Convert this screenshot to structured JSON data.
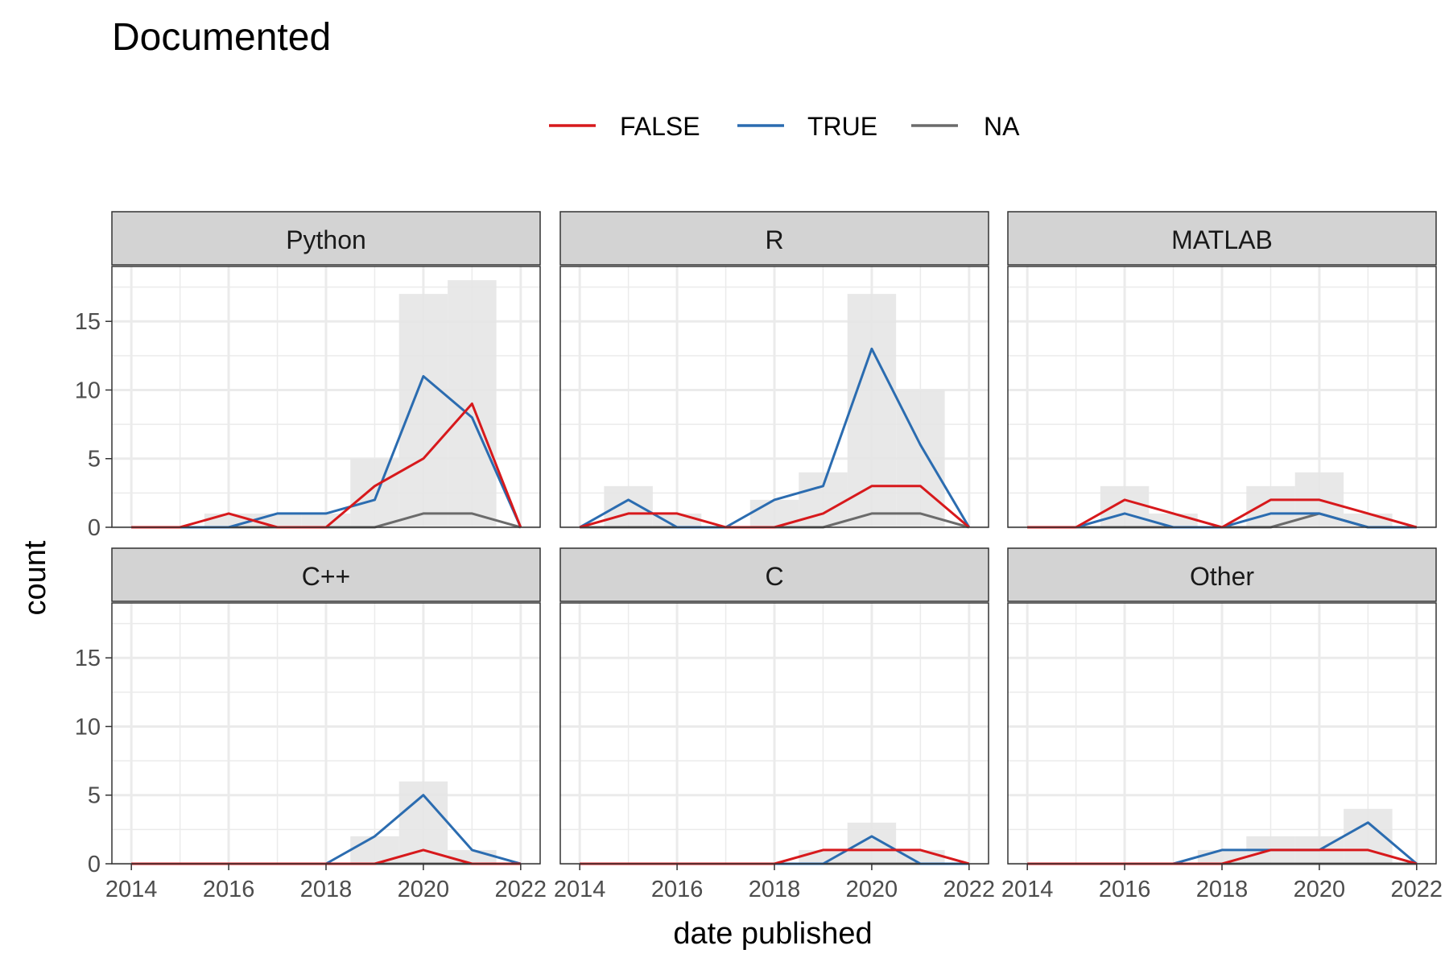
{
  "chart_data": {
    "type": "line",
    "title": "Documented",
    "xlabel": "date published",
    "ylabel": "count",
    "xlim": [
      2013.6,
      2022.4
    ],
    "ylim": [
      0,
      19
    ],
    "x_ticks": [
      2014,
      2016,
      2018,
      2020,
      2022
    ],
    "y_ticks": [
      0,
      5,
      10,
      15
    ],
    "grid": true,
    "legend_position": "top",
    "legend": [
      {
        "label": "FALSE",
        "color": "#d7191c"
      },
      {
        "label": "TRUE",
        "color": "#2b6cb0"
      },
      {
        "label": "NA",
        "color": "#6b6b6b"
      }
    ],
    "background_bar_color": "#e6e6e6",
    "panels": [
      {
        "name": "Python",
        "bars": [
          {
            "x": 2014,
            "y": 0
          },
          {
            "x": 2015,
            "y": 0
          },
          {
            "x": 2016,
            "y": 1
          },
          {
            "x": 2017,
            "y": 1
          },
          {
            "x": 2018,
            "y": 1
          },
          {
            "x": 2019,
            "y": 5
          },
          {
            "x": 2020,
            "y": 17
          },
          {
            "x": 2021,
            "y": 18
          },
          {
            "x": 2022,
            "y": 0
          }
        ],
        "series": [
          {
            "name": "FALSE",
            "x": [
              2014,
              2015,
              2016,
              2017,
              2018,
              2019,
              2020,
              2021,
              2022
            ],
            "values": [
              0,
              0,
              1,
              0,
              0,
              3,
              5,
              9,
              0
            ]
          },
          {
            "name": "TRUE",
            "x": [
              2014,
              2015,
              2016,
              2017,
              2018,
              2019,
              2020,
              2021,
              2022
            ],
            "values": [
              0,
              0,
              0,
              1,
              1,
              2,
              11,
              8,
              0
            ]
          },
          {
            "name": "NA",
            "x": [
              2014,
              2015,
              2016,
              2017,
              2018,
              2019,
              2020,
              2021,
              2022
            ],
            "values": [
              0,
              0,
              0,
              0,
              0,
              0,
              1,
              1,
              0
            ]
          }
        ]
      },
      {
        "name": "R",
        "bars": [
          {
            "x": 2014,
            "y": 0
          },
          {
            "x": 2015,
            "y": 3
          },
          {
            "x": 2016,
            "y": 1
          },
          {
            "x": 2017,
            "y": 0
          },
          {
            "x": 2018,
            "y": 2
          },
          {
            "x": 2019,
            "y": 4
          },
          {
            "x": 2020,
            "y": 17
          },
          {
            "x": 2021,
            "y": 10
          },
          {
            "x": 2022,
            "y": 0
          }
        ],
        "series": [
          {
            "name": "FALSE",
            "x": [
              2014,
              2015,
              2016,
              2017,
              2018,
              2019,
              2020,
              2021,
              2022
            ],
            "values": [
              0,
              1,
              1,
              0,
              0,
              1,
              3,
              3,
              0
            ]
          },
          {
            "name": "TRUE",
            "x": [
              2014,
              2015,
              2016,
              2017,
              2018,
              2019,
              2020,
              2021,
              2022
            ],
            "values": [
              0,
              2,
              0,
              0,
              2,
              3,
              13,
              6,
              0
            ]
          },
          {
            "name": "NA",
            "x": [
              2014,
              2015,
              2016,
              2017,
              2018,
              2019,
              2020,
              2021,
              2022
            ],
            "values": [
              0,
              0,
              0,
              0,
              0,
              0,
              1,
              1,
              0
            ]
          }
        ]
      },
      {
        "name": "MATLAB",
        "bars": [
          {
            "x": 2014,
            "y": 0
          },
          {
            "x": 2015,
            "y": 0
          },
          {
            "x": 2016,
            "y": 3
          },
          {
            "x": 2017,
            "y": 1
          },
          {
            "x": 2018,
            "y": 0
          },
          {
            "x": 2019,
            "y": 3
          },
          {
            "x": 2020,
            "y": 4
          },
          {
            "x": 2021,
            "y": 1
          },
          {
            "x": 2022,
            "y": 0
          }
        ],
        "series": [
          {
            "name": "FALSE",
            "x": [
              2014,
              2015,
              2016,
              2017,
              2018,
              2019,
              2020,
              2021,
              2022
            ],
            "values": [
              0,
              0,
              2,
              1,
              0,
              2,
              2,
              1,
              0
            ]
          },
          {
            "name": "TRUE",
            "x": [
              2014,
              2015,
              2016,
              2017,
              2018,
              2019,
              2020,
              2021,
              2022
            ],
            "values": [
              0,
              0,
              1,
              0,
              0,
              1,
              1,
              0,
              0
            ]
          },
          {
            "name": "NA",
            "x": [
              2014,
              2015,
              2016,
              2017,
              2018,
              2019,
              2020,
              2021,
              2022
            ],
            "values": [
              0,
              0,
              0,
              0,
              0,
              0,
              1,
              0,
              0
            ]
          }
        ]
      },
      {
        "name": "C++",
        "bars": [
          {
            "x": 2014,
            "y": 0
          },
          {
            "x": 2015,
            "y": 0
          },
          {
            "x": 2016,
            "y": 0
          },
          {
            "x": 2017,
            "y": 0
          },
          {
            "x": 2018,
            "y": 0
          },
          {
            "x": 2019,
            "y": 2
          },
          {
            "x": 2020,
            "y": 6
          },
          {
            "x": 2021,
            "y": 1
          },
          {
            "x": 2022,
            "y": 0
          }
        ],
        "series": [
          {
            "name": "FALSE",
            "x": [
              2014,
              2015,
              2016,
              2017,
              2018,
              2019,
              2020,
              2021,
              2022
            ],
            "values": [
              0,
              0,
              0,
              0,
              0,
              0,
              1,
              0,
              0
            ]
          },
          {
            "name": "TRUE",
            "x": [
              2014,
              2015,
              2016,
              2017,
              2018,
              2019,
              2020,
              2021,
              2022
            ],
            "values": [
              0,
              0,
              0,
              0,
              0,
              2,
              5,
              1,
              0
            ]
          },
          {
            "name": "NA",
            "x": [
              2014,
              2015,
              2016,
              2017,
              2018,
              2019,
              2020,
              2021,
              2022
            ],
            "values": [
              0,
              0,
              0,
              0,
              0,
              0,
              0,
              0,
              0
            ]
          }
        ]
      },
      {
        "name": "C",
        "bars": [
          {
            "x": 2014,
            "y": 0
          },
          {
            "x": 2015,
            "y": 0
          },
          {
            "x": 2016,
            "y": 0
          },
          {
            "x": 2017,
            "y": 0
          },
          {
            "x": 2018,
            "y": 0
          },
          {
            "x": 2019,
            "y": 1
          },
          {
            "x": 2020,
            "y": 3
          },
          {
            "x": 2021,
            "y": 1
          },
          {
            "x": 2022,
            "y": 0
          }
        ],
        "series": [
          {
            "name": "FALSE",
            "x": [
              2014,
              2015,
              2016,
              2017,
              2018,
              2019,
              2020,
              2021,
              2022
            ],
            "values": [
              0,
              0,
              0,
              0,
              0,
              1,
              1,
              1,
              0
            ]
          },
          {
            "name": "TRUE",
            "x": [
              2014,
              2015,
              2016,
              2017,
              2018,
              2019,
              2020,
              2021,
              2022
            ],
            "values": [
              0,
              0,
              0,
              0,
              0,
              0,
              2,
              0,
              0
            ]
          },
          {
            "name": "NA",
            "x": [
              2014,
              2015,
              2016,
              2017,
              2018,
              2019,
              2020,
              2021,
              2022
            ],
            "values": [
              0,
              0,
              0,
              0,
              0,
              0,
              0,
              0,
              0
            ]
          }
        ]
      },
      {
        "name": "Other",
        "bars": [
          {
            "x": 2014,
            "y": 0
          },
          {
            "x": 2015,
            "y": 0
          },
          {
            "x": 2016,
            "y": 0
          },
          {
            "x": 2017,
            "y": 0
          },
          {
            "x": 2018,
            "y": 1
          },
          {
            "x": 2019,
            "y": 2
          },
          {
            "x": 2020,
            "y": 2
          },
          {
            "x": 2021,
            "y": 4
          },
          {
            "x": 2022,
            "y": 0
          }
        ],
        "series": [
          {
            "name": "FALSE",
            "x": [
              2014,
              2015,
              2016,
              2017,
              2018,
              2019,
              2020,
              2021,
              2022
            ],
            "values": [
              0,
              0,
              0,
              0,
              0,
              1,
              1,
              1,
              0
            ]
          },
          {
            "name": "TRUE",
            "x": [
              2014,
              2015,
              2016,
              2017,
              2018,
              2019,
              2020,
              2021,
              2022
            ],
            "values": [
              0,
              0,
              0,
              0,
              1,
              1,
              1,
              3,
              0
            ]
          },
          {
            "name": "NA",
            "x": [
              2014,
              2015,
              2016,
              2017,
              2018,
              2019,
              2020,
              2021,
              2022
            ],
            "values": [
              0,
              0,
              0,
              0,
              0,
              0,
              0,
              0,
              0
            ]
          }
        ]
      }
    ]
  }
}
